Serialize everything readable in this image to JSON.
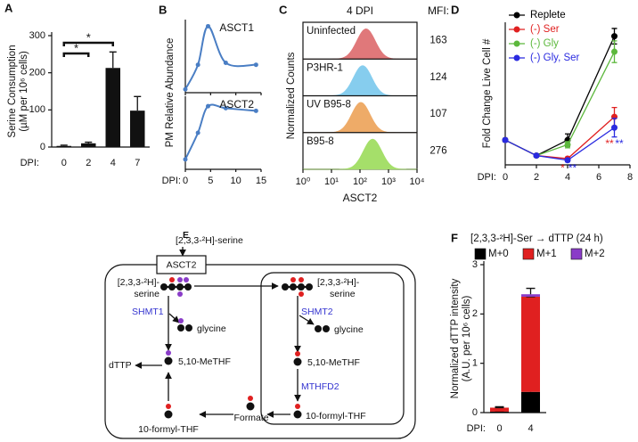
{
  "chart_data": [
    {
      "panel": "A",
      "type": "bar",
      "categories": [
        "0",
        "2",
        "4",
        "7"
      ],
      "values": [
        3,
        10,
        213,
        98
      ],
      "errors": [
        2,
        3,
        43,
        38
      ],
      "color": "#111111",
      "ylim": [
        0,
        300
      ],
      "yticks": [
        0,
        100,
        200,
        300
      ],
      "ylabel": [
        "Serine Consumption",
        "(µM per 10⁶ cells)"
      ],
      "xlabel": "DPI:",
      "annotations": [
        {
          "text": "*",
          "categories": [
            "0",
            "2"
          ]
        },
        {
          "text": "*",
          "categories": [
            "0",
            "4"
          ]
        }
      ]
    },
    {
      "panel": "B",
      "type": "line",
      "facet": true,
      "color": "#4a7ec4",
      "series": [
        {
          "name": "ASCT1",
          "x": [
            0,
            2.5,
            4.5,
            8,
            14
          ],
          "values": [
            0.05,
            0.42,
            1.0,
            0.45,
            0.42
          ]
        },
        {
          "name": "ASCT2",
          "x": [
            0,
            2.5,
            4.5,
            8,
            14
          ],
          "values": [
            0.15,
            0.55,
            0.95,
            0.92,
            0.88
          ]
        }
      ],
      "xlim": [
        0,
        15
      ],
      "xticks": [
        0,
        5,
        10,
        15
      ],
      "ylim": [
        0,
        1.1
      ],
      "ylabel": "PM Relative Abundance",
      "xlabel": "DPI:"
    },
    {
      "panel": "C",
      "type": "ridge",
      "title": "4 DPI",
      "value_title": "MFI:",
      "series": [
        {
          "name": "Uninfected",
          "color": "#e0787a",
          "value": 163
        },
        {
          "name": "P3HR-1",
          "color": "#86cdee",
          "value": 124
        },
        {
          "name": "UV B95-8",
          "color": "#eeab68",
          "value": 107
        },
        {
          "name": "B95-8",
          "color": "#a5df6a",
          "value": 276
        }
      ],
      "log": true,
      "xlim": [
        1,
        10000
      ],
      "xticks": [
        {
          "value": 1,
          "label": "10⁰"
        },
        {
          "value": 10,
          "label": "10¹"
        },
        {
          "value": 100,
          "label": "10²"
        },
        {
          "value": 1000,
          "label": "10³"
        },
        {
          "value": 10000,
          "label": "10⁴"
        }
      ],
      "xlabel": "ASCT2",
      "ylabel": "Normalized Counts"
    },
    {
      "panel": "D",
      "type": "line",
      "x": [
        0,
        2,
        4,
        7
      ],
      "series": [
        {
          "name": "Replete",
          "color": "#000000",
          "values": [
            1,
            0.5,
            1.0,
            4.35
          ],
          "errors": [
            0.05,
            0.05,
            0.2,
            0.25
          ]
        },
        {
          "name": "(-) Ser",
          "color": "#e02020",
          "values": [
            1,
            0.5,
            0.4,
            1.75
          ],
          "errors": [
            0.05,
            0.05,
            0.05,
            0.3
          ]
        },
        {
          "name": "(-) Gly",
          "color": "#5cb83c",
          "values": [
            1,
            0.5,
            0.85,
            3.85
          ],
          "errors": [
            0.05,
            0.05,
            0.1,
            0.35
          ]
        },
        {
          "name": "(-) Gly, Ser",
          "color": "#2a2ae0",
          "values": [
            1,
            0.5,
            0.35,
            1.4
          ],
          "errors": [
            0.05,
            0.05,
            0.05,
            0.3
          ]
        }
      ],
      "xlim": [
        0,
        8
      ],
      "xticks": [
        0,
        2,
        4,
        6,
        8
      ],
      "ylim": [
        0.2,
        4.8
      ],
      "ylabel": "Fold Change Live Cell #",
      "xlabel": "DPI:",
      "legend": "top-left",
      "annotations": [
        {
          "text": "*",
          "series": "(-) Ser",
          "x": 4
        },
        {
          "text": "**",
          "series": "(-) Gly, Ser",
          "x": 4
        },
        {
          "text": "**",
          "series": "(-) Ser",
          "x": 7
        },
        {
          "text": "**",
          "series": "(-) Gly, Ser",
          "x": 7
        }
      ]
    },
    {
      "panel": "F",
      "type": "stacked_bar",
      "title": "[2,3,3-²H]-Ser → dTTP (24 h)",
      "categories": [
        "0",
        "4"
      ],
      "series": [
        {
          "name": "M+0",
          "color": "#000000",
          "values": [
            0.02,
            0.42
          ],
          "errors": [
            0.01,
            0.1
          ]
        },
        {
          "name": "M+1",
          "color": "#e02020",
          "values": [
            0.08,
            1.93
          ],
          "errors": [
            0.02,
            0
          ]
        },
        {
          "name": "M+2",
          "color": "#8a3cc8",
          "values": [
            0,
            0.05
          ],
          "errors": [
            0,
            0.12
          ]
        }
      ],
      "ylim": [
        0,
        3
      ],
      "yticks": [
        0,
        1,
        2,
        3
      ],
      "ylabel": [
        "Normalized dTTP intensity",
        "(A.U. per 10⁶ cells)"
      ],
      "xlabel": "DPI:",
      "legend": "top"
    }
  ],
  "diagram": {
    "panel": "E",
    "source": "[2,3,3-²H]-serine",
    "transporter": "ASCT2",
    "cytosol": {
      "serine": [
        "[2,3,3-²H]-",
        "serine"
      ],
      "enzyme": "SHMT1",
      "glycine": "glycine",
      "methylene": "5,10-MeTHF",
      "product": "dTTP",
      "formyl": "10-formyl-THF",
      "formate": "Formate"
    },
    "mitochondria": {
      "serine": [
        "[2,3,3-²H]-",
        "serine"
      ],
      "enzyme1": "SHMT2",
      "glycine": "glycine",
      "methylene": "5,10-MeTHF",
      "enzyme2": "MTHFD2",
      "formyl": "10-formyl-THF"
    }
  }
}
